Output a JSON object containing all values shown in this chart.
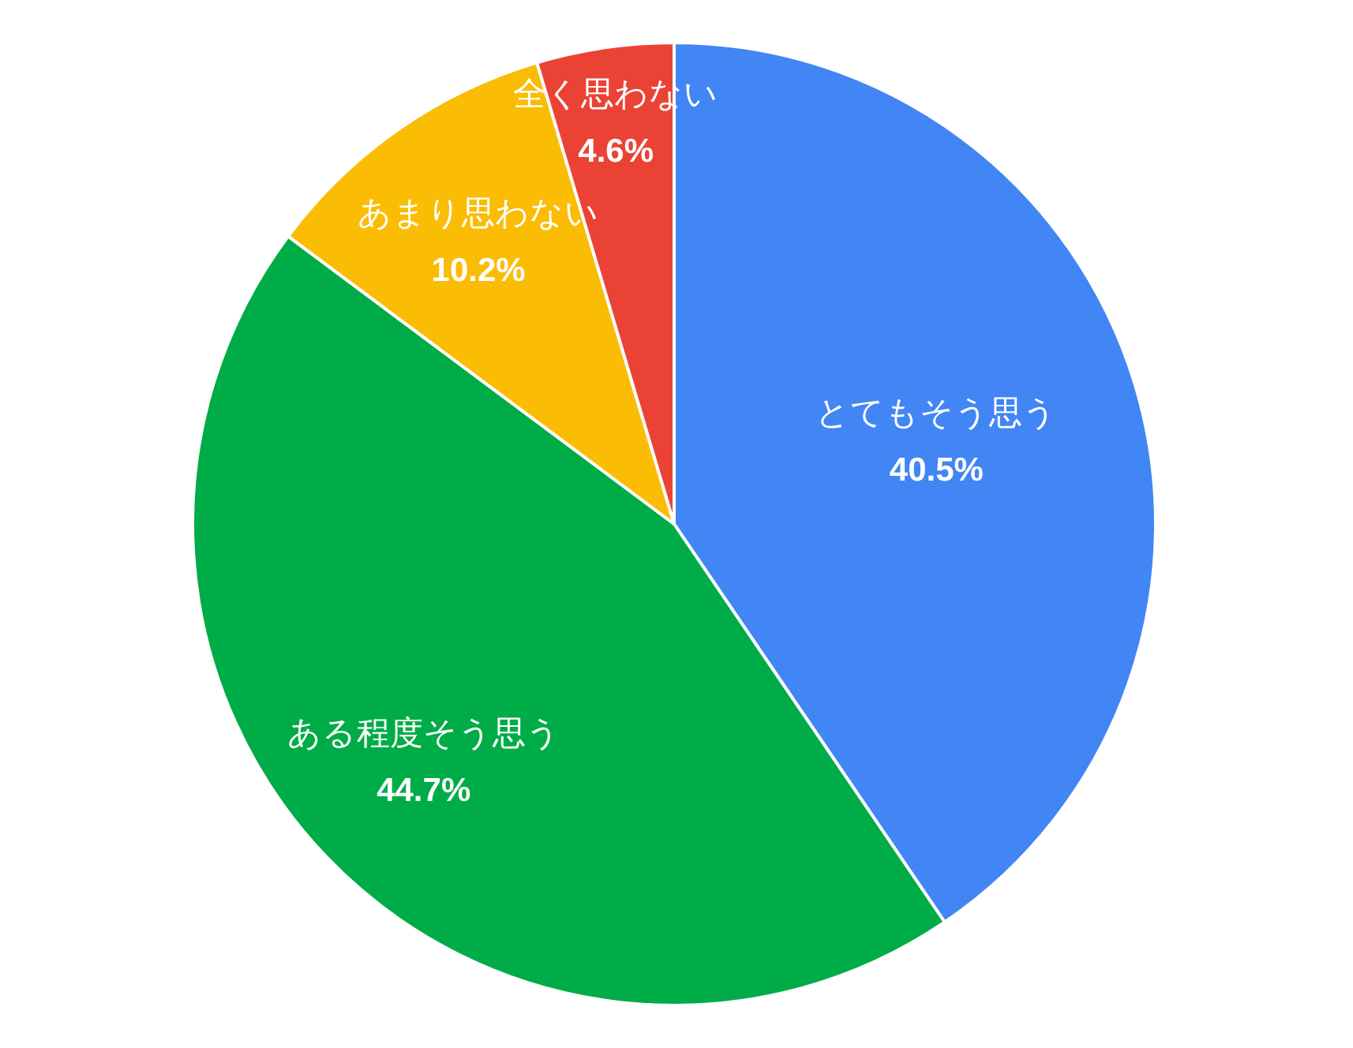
{
  "chart_data": {
    "type": "pie",
    "categories": [
      "とてもそう思う",
      "ある程度そう思う",
      "あまり思わない",
      "全く思わない"
    ],
    "values": [
      40.5,
      44.7,
      10.2,
      4.6
    ],
    "colors": [
      "#4285f4",
      "#00ac47",
      "#fbbc04",
      "#ea4335"
    ],
    "value_labels": [
      "40.5%",
      "44.7%",
      "10.2%",
      "4.6%"
    ],
    "legend": false
  }
}
